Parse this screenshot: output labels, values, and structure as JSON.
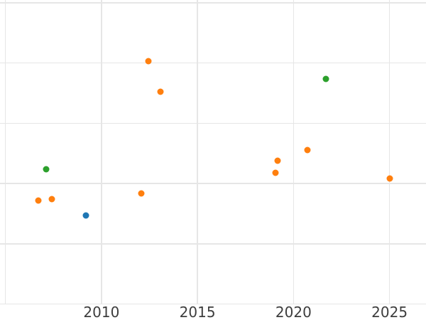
{
  "chart_data": {
    "type": "scatter",
    "title": "",
    "xlabel": "",
    "ylabel": "",
    "grid": true,
    "legend_position": "none",
    "background_color": "#ffffff",
    "grid_color": "#e6e6e6",
    "tick_label_color": "#3d3d3d",
    "x_tick_labels": [
      "2010",
      "2015",
      "2020",
      "2025"
    ],
    "x_tick_values": [
      2010,
      2015,
      2020,
      2025
    ],
    "x_gridline_years": [
      2005,
      2010,
      2015,
      2020,
      2025
    ],
    "xlim": [
      2004.7,
      2026.9
    ],
    "y_gridline_values": [
      0,
      1,
      2,
      3,
      4,
      5
    ],
    "y_tick_labels": [],
    "ylim": [
      -0.27,
      5.05
    ],
    "y_units": "unlabeled-gridline-units",
    "series": [
      {
        "name": "orange-series",
        "color": "#ff7f0e",
        "points": [
          {
            "x": 2006.7,
            "y": 1.72
          },
          {
            "x": 2007.42,
            "y": 1.74
          },
          {
            "x": 2012.06,
            "y": 1.84
          },
          {
            "x": 2012.45,
            "y": 4.03
          },
          {
            "x": 2013.06,
            "y": 3.53
          },
          {
            "x": 2019.05,
            "y": 2.18
          },
          {
            "x": 2019.16,
            "y": 2.38
          },
          {
            "x": 2020.73,
            "y": 2.56
          },
          {
            "x": 2025.02,
            "y": 2.08
          }
        ]
      },
      {
        "name": "green-series",
        "color": "#2ca02c",
        "points": [
          {
            "x": 2007.14,
            "y": 2.24
          },
          {
            "x": 2021.69,
            "y": 3.74
          }
        ]
      },
      {
        "name": "blue-series",
        "color": "#1f77b4",
        "points": [
          {
            "x": 2009.18,
            "y": 1.47
          }
        ]
      }
    ]
  }
}
